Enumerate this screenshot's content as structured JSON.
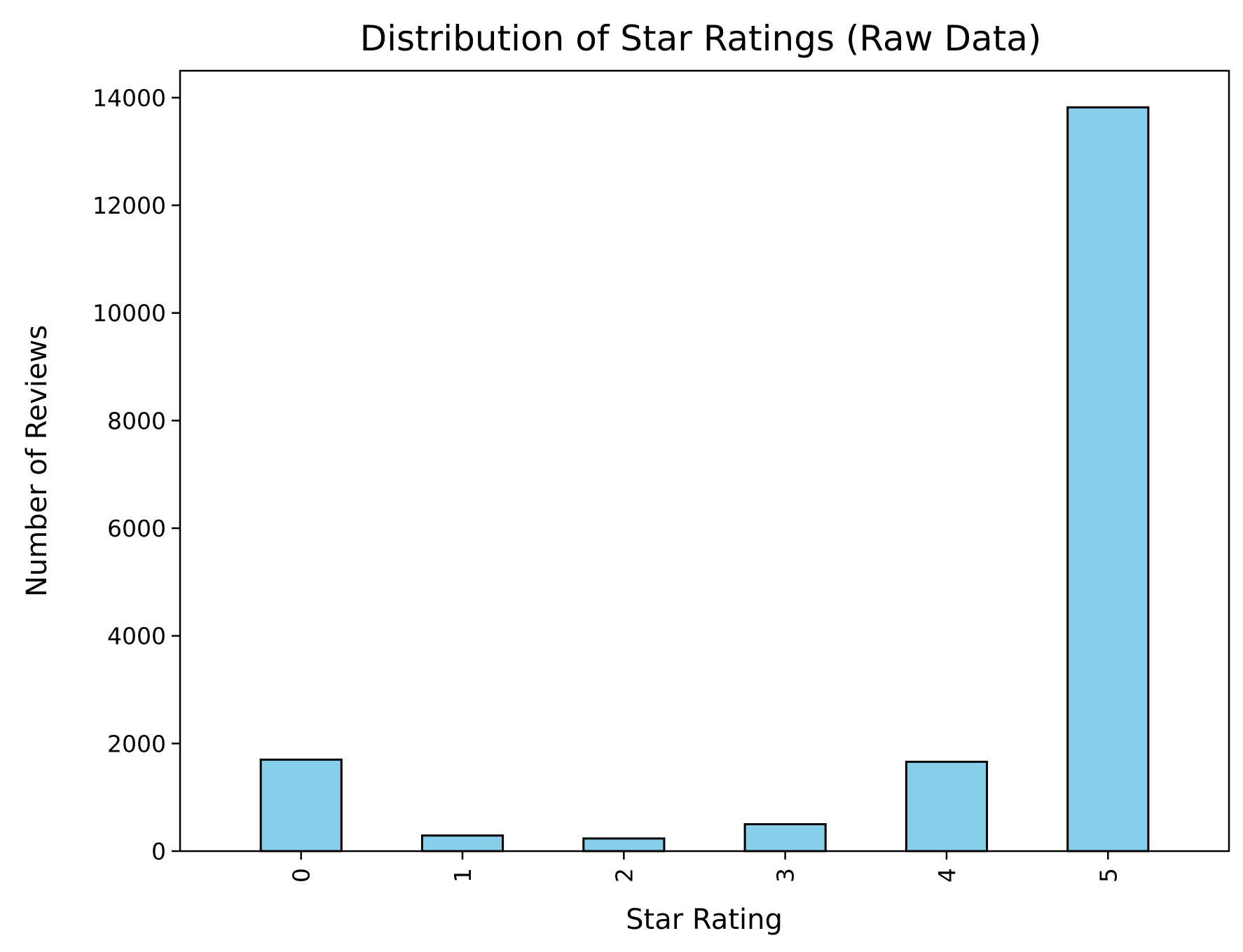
{
  "chart_data": {
    "type": "bar",
    "title": "Distribution of Star Ratings (Raw Data)",
    "xlabel": "Star Rating",
    "ylabel": "Number of Reviews",
    "categories": [
      "0",
      "1",
      "2",
      "3",
      "4",
      "5"
    ],
    "values": [
      1700,
      290,
      235,
      500,
      1660,
      13820
    ],
    "ylim": [
      0,
      14500
    ],
    "yticks": [
      0,
      2000,
      4000,
      6000,
      8000,
      10000,
      12000,
      14000
    ],
    "ytick_labels": [
      "0",
      "2000",
      "4000",
      "6000",
      "8000",
      "10000",
      "12000",
      "14000"
    ],
    "x_tick_rotation": "vertical",
    "grid": false,
    "legend": "none",
    "bar_color": "#87CEEB",
    "bar_edge_color": "#000000"
  }
}
